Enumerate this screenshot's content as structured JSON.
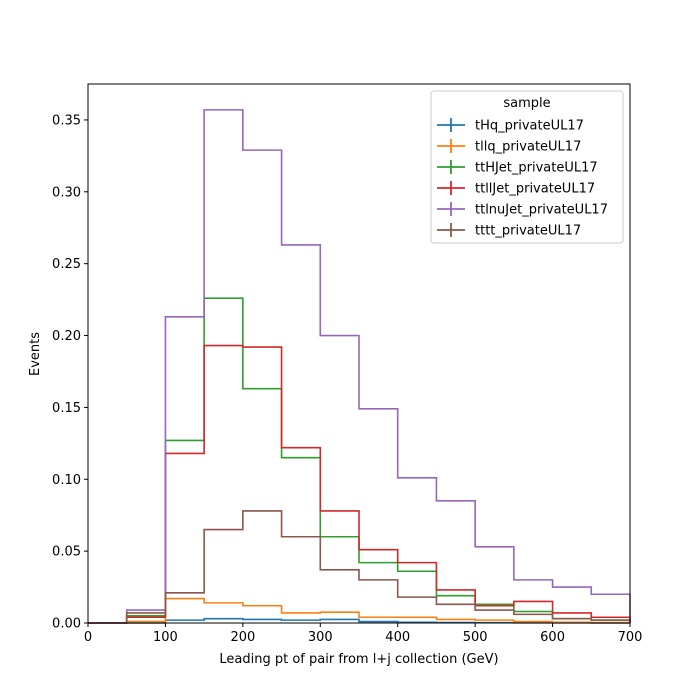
{
  "chart_data": {
    "type": "step-histogram",
    "xlabel": "Leading pt of pair from l+j collection (GeV)",
    "ylabel": "Events",
    "xlim": [
      0,
      700
    ],
    "ylim": [
      0,
      0.375
    ],
    "xticks": [
      0,
      100,
      200,
      300,
      400,
      500,
      600,
      700
    ],
    "yticks": [
      0.0,
      0.05,
      0.1,
      0.15,
      0.2,
      0.25,
      0.3,
      0.35
    ],
    "ytick_labels": [
      "0.00",
      "0.05",
      "0.10",
      "0.15",
      "0.20",
      "0.25",
      "0.30",
      "0.35"
    ],
    "bin_edges": [
      0,
      50,
      100,
      150,
      200,
      250,
      300,
      350,
      400,
      450,
      500,
      550,
      600,
      650,
      700
    ],
    "grid": false,
    "legend": {
      "title": "sample",
      "location": "top-right"
    },
    "series": [
      {
        "name": "tHq_privateUL17",
        "color": "#1f77b4",
        "values": [
          0.0,
          0.0,
          0.002,
          0.003,
          0.0025,
          0.002,
          0.0025,
          0.001,
          0.0005,
          0.0003,
          0.0002,
          0.0001,
          0.0001,
          0.0
        ]
      },
      {
        "name": "tllq_privateUL17",
        "color": "#ff7f0e",
        "values": [
          0.0,
          0.001,
          0.017,
          0.014,
          0.012,
          0.007,
          0.0075,
          0.004,
          0.004,
          0.0025,
          0.002,
          0.001,
          0.0005,
          0.0003
        ]
      },
      {
        "name": "ttHJet_privateUL17",
        "color": "#2ca02c",
        "values": [
          0.0,
          0.005,
          0.127,
          0.226,
          0.163,
          0.115,
          0.06,
          0.042,
          0.036,
          0.019,
          0.013,
          0.008,
          0.003,
          0.002
        ]
      },
      {
        "name": "ttllJet_privateUL17",
        "color": "#d62728",
        "values": [
          0.0,
          0.004,
          0.118,
          0.193,
          0.192,
          0.122,
          0.078,
          0.051,
          0.042,
          0.023,
          0.012,
          0.015,
          0.007,
          0.004
        ]
      },
      {
        "name": "ttlnuJet_privateUL17",
        "color": "#9467bd",
        "values": [
          0.0,
          0.009,
          0.213,
          0.357,
          0.329,
          0.263,
          0.2,
          0.149,
          0.101,
          0.085,
          0.053,
          0.03,
          0.025,
          0.02
        ]
      },
      {
        "name": "tttt_privateUL17",
        "color": "#8c564b",
        "values": [
          0.0,
          0.007,
          0.021,
          0.065,
          0.078,
          0.06,
          0.037,
          0.03,
          0.018,
          0.013,
          0.009,
          0.006,
          0.003,
          0.002
        ]
      }
    ]
  }
}
